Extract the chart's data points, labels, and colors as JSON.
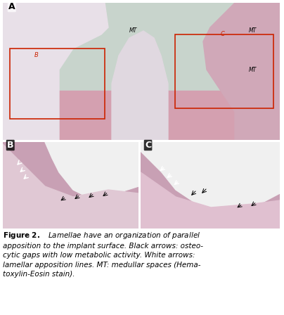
{
  "figure_title": "Figure 2.",
  "caption_bold": "Figure 2.",
  "caption_text": "   Lamellae have an organization of parallel apposition to the implant surface. Black arrows: osteocytic gaps with low metabolic activity. White arrows: lamellar apposition lines. MT: medullar spaces (Hematoxylin-Eosin stain).",
  "panel_A_label": "A",
  "panel_B_label": "B",
  "panel_C_label": "C",
  "bg_color": "#ffffff",
  "panel_border_color": "#000000",
  "roi_box_color": "#cc2200",
  "label_B_in_A": "B",
  "label_C_in_A": "C",
  "label_MT_1": "MT",
  "label_MT_2": "MT",
  "label_MT_3": "MT",
  "panel_A_bg": "#c8d4cc",
  "tissue_pink": "#e8b4c0",
  "tissue_dark": "#c87090",
  "implant_white": "#f0f0f0"
}
